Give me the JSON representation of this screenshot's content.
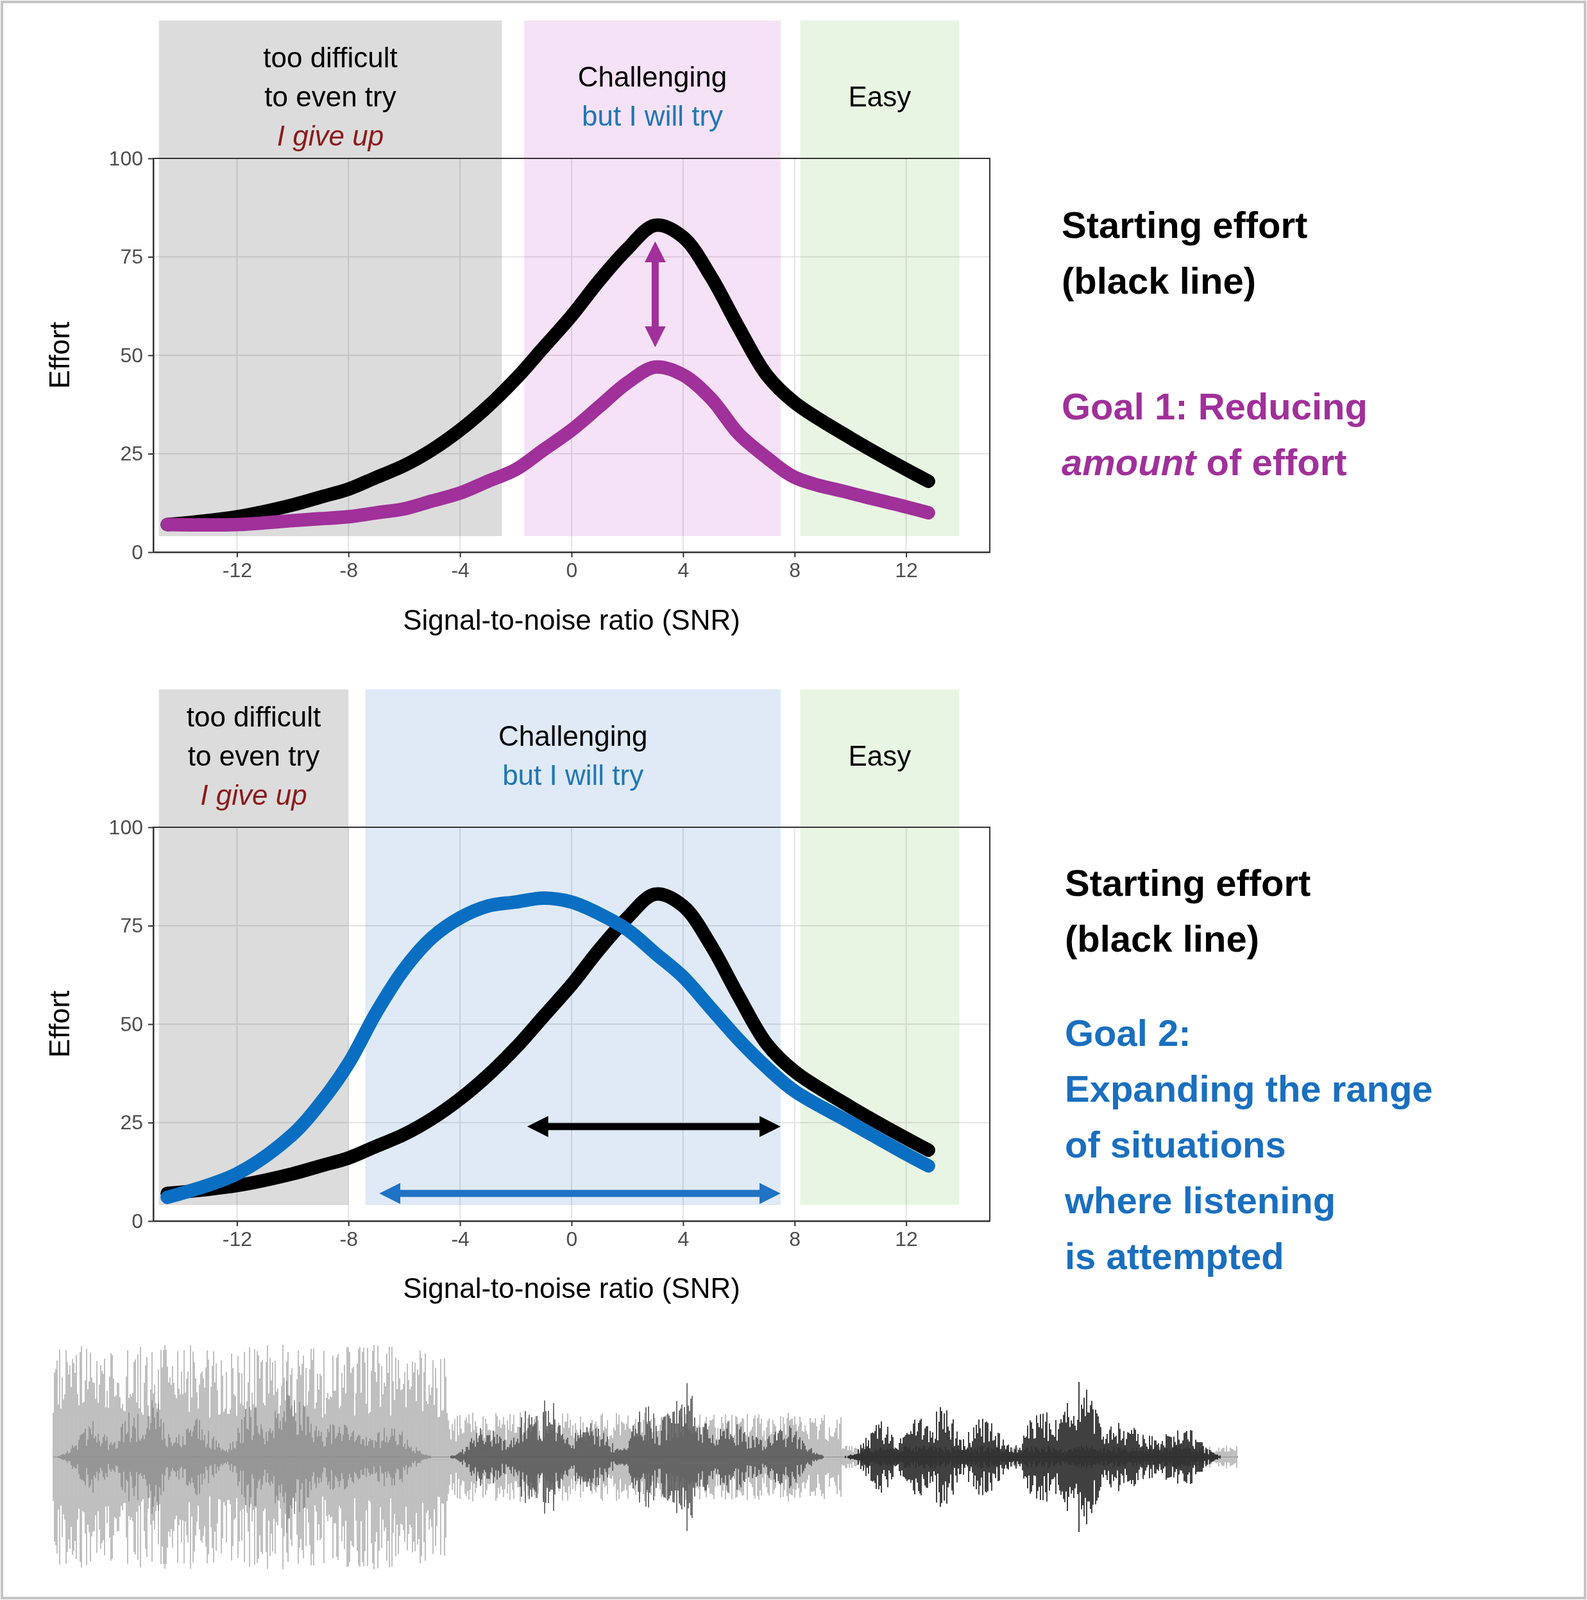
{
  "chart_data": [
    {
      "type": "line",
      "x_label": "Signal-to-noise ratio (SNR)",
      "y_label": "Effort",
      "xlim": [
        -15,
        15
      ],
      "ylim": [
        0,
        100
      ],
      "xticks": [
        -12,
        -8,
        -4,
        0,
        4,
        8,
        12
      ],
      "yticks": [
        0,
        25,
        50,
        75,
        100
      ],
      "grid": true,
      "x": [
        -14.5,
        -12,
        -10,
        -9,
        -8,
        -7,
        -6,
        -5,
        -4,
        -3,
        -2,
        -1,
        0,
        1,
        2,
        3,
        4,
        5,
        6,
        7,
        8,
        10,
        12,
        12.8
      ],
      "series": [
        {
          "color": "#000000",
          "values": [
            7,
            9,
            12,
            14,
            16,
            19,
            22,
            26,
            31,
            37,
            44,
            52,
            60,
            69,
            77,
            83,
            80,
            70,
            57,
            45,
            38,
            29,
            21,
            18
          ]
        },
        {
          "color": "#a0309a",
          "values": [
            7,
            7,
            8,
            8.5,
            9,
            10,
            11,
            13,
            15,
            18,
            21,
            26,
            31,
            37,
            43,
            47,
            45,
            39,
            30,
            24,
            19,
            15,
            11.5,
            10
          ]
        }
      ],
      "regions": [
        {
          "x_range": [
            -14.8,
            -2.5
          ],
          "color": "#dcdcdc",
          "lines": [
            "too difficult",
            "to even try"
          ],
          "note": "I give up",
          "note_color": "#8b1a1a"
        },
        {
          "x_range": [
            -1.7,
            7.5
          ],
          "color": "#f6e2f6",
          "lines": [
            "Challenging"
          ],
          "note": "but I will try",
          "note_color": "#1f77b4"
        },
        {
          "x_range": [
            8.2,
            13.9
          ],
          "color": "#e9f5e3",
          "lines": [
            "Easy"
          ]
        }
      ],
      "arrows": [
        {
          "x": 3,
          "y_range": [
            52,
            79
          ],
          "color": "#a0309a"
        }
      ],
      "side_heading": [
        "Starting effort",
        "(black line)"
      ],
      "side_goal": [
        [
          {
            "text": "Goal 1: Reducing"
          }
        ],
        [
          {
            "text": "amount",
            "italic": true
          },
          {
            "text": " of effort"
          }
        ]
      ],
      "side_goal_color": "#a0309a"
    },
    {
      "type": "line",
      "x_label": "Signal-to-noise ratio (SNR)",
      "y_label": "Effort",
      "xlim": [
        -15,
        15
      ],
      "ylim": [
        0,
        100
      ],
      "xticks": [
        -12,
        -8,
        -4,
        0,
        4,
        8,
        12
      ],
      "yticks": [
        0,
        25,
        50,
        75,
        100
      ],
      "grid": true,
      "x": [
        -14.5,
        -12,
        -10,
        -9,
        -8,
        -7,
        -6,
        -5,
        -4,
        -3,
        -2,
        -1,
        0,
        1,
        2,
        3,
        4,
        5,
        6,
        7,
        8,
        10,
        12,
        12.8
      ],
      "series": [
        {
          "color": "#000000",
          "values": [
            7,
            9,
            12,
            14,
            16,
            19,
            22,
            26,
            31,
            37,
            44,
            52,
            60,
            69,
            77,
            83,
            80,
            70,
            57,
            45,
            38,
            29,
            21,
            18
          ]
        },
        {
          "color": "#0a6fc2",
          "values": [
            6,
            12,
            22,
            30,
            40,
            53,
            64,
            72,
            77,
            80,
            81,
            82,
            81,
            78,
            74,
            68,
            62,
            54,
            46,
            39,
            33,
            25,
            17,
            14
          ]
        }
      ],
      "regions": [
        {
          "x_range": [
            -14.8,
            -8
          ],
          "color": "#dcdcdc",
          "lines": [
            "too difficult",
            "to even try"
          ],
          "note": "I give up",
          "note_color": "#8b1a1a"
        },
        {
          "x_range": [
            -7.4,
            7.5
          ],
          "color": "#dfeaf6",
          "lines": [
            "Challenging"
          ],
          "note": "but I will try",
          "note_color": "#1f77b4"
        },
        {
          "x_range": [
            8.2,
            13.9
          ],
          "color": "#e9f5e3",
          "lines": [
            "Easy"
          ]
        }
      ],
      "arrows": [
        {
          "y": 24,
          "x_range": [
            -1.6,
            7.5
          ],
          "color": "#000000"
        },
        {
          "y": 7,
          "x_range": [
            -6.9,
            7.5
          ],
          "color": "#1f72c4"
        }
      ],
      "side_heading": [
        "Starting effort",
        "(black line)"
      ],
      "side_goal": [
        [
          {
            "text": "Goal 2:"
          }
        ],
        [
          {
            "text": "Expanding the range"
          }
        ],
        [
          {
            "text": "of situations"
          }
        ],
        [
          {
            "text": "where listening"
          }
        ],
        [
          {
            "text": "is attempted"
          }
        ]
      ],
      "side_goal_color": "#1a6fbf"
    }
  ]
}
